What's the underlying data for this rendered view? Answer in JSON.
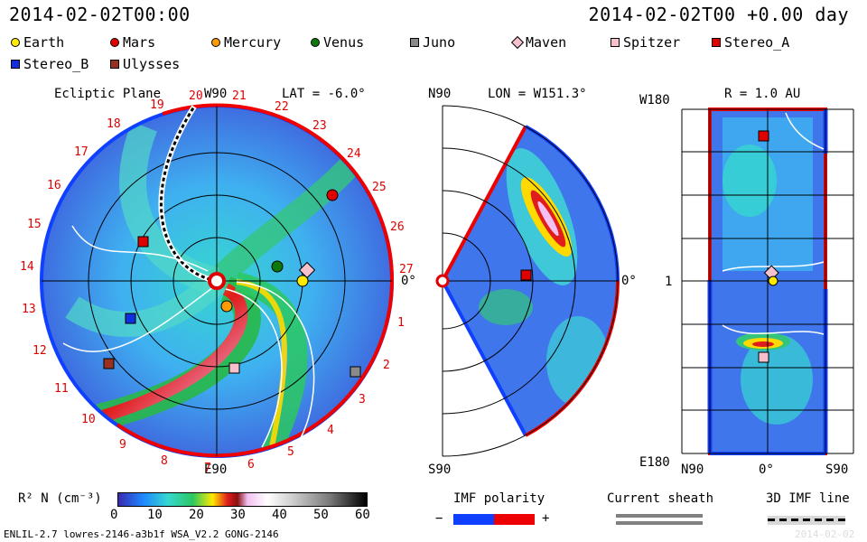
{
  "header": {
    "time": "2014-02-02T00:00",
    "time_right": "2014-02-02T00 +0.00 day"
  },
  "legend": [
    {
      "name": "Earth",
      "color": "#ffea00",
      "shape": "circle"
    },
    {
      "name": "Mars",
      "color": "#e00000",
      "shape": "circle"
    },
    {
      "name": "Mercury",
      "color": "#ff9a00",
      "shape": "circle"
    },
    {
      "name": "Venus",
      "color": "#0b7a0b",
      "shape": "circle"
    },
    {
      "name": "Juno",
      "color": "#8a8a8a",
      "shape": "square"
    },
    {
      "name": "Maven",
      "color": "#f6c0cc",
      "shape": "diamond"
    },
    {
      "name": "Spitzer",
      "color": "#f6c0cc",
      "shape": "square"
    },
    {
      "name": "Stereo_A",
      "color": "#e00000",
      "shape": "square"
    },
    {
      "name": "Stereo_B",
      "color": "#1030e0",
      "shape": "square"
    },
    {
      "name": "Ulysses",
      "color": "#9a3020",
      "shape": "square"
    }
  ],
  "panel1": {
    "title": "Ecliptic Plane",
    "top": "W90",
    "lat": "LAT = -6.0°",
    "bottom": "E90",
    "right": "0°",
    "hours": [
      "19",
      "20",
      "21",
      "22",
      "23",
      "24",
      "25",
      "26",
      "27",
      "1",
      "2",
      "3",
      "4",
      "5",
      "6",
      "7",
      "8",
      "9",
      "10",
      "11",
      "12",
      "13",
      "14",
      "15",
      "16",
      "17",
      "18"
    ]
  },
  "panel2": {
    "top": "N90",
    "lon": "LON = W151.3°",
    "bottom": "S90",
    "right": "0°"
  },
  "panel3": {
    "r": "R = 1.0 AU",
    "top": "W180",
    "bottom": "E180",
    "mid": "1",
    "x_left": "N90",
    "x_mid": "0°",
    "x_right": "S90"
  },
  "colorbar": {
    "label": "R² N (cm⁻³)",
    "ticks": [
      "0",
      "10",
      "20",
      "30",
      "40",
      "50",
      "60"
    ]
  },
  "imf": {
    "label": "IMF polarity",
    "minus": "−",
    "plus": "+"
  },
  "sheath": {
    "label": "Current sheath"
  },
  "imf3d": {
    "label": "3D IMF line"
  },
  "footer": {
    "text": "ENLIL-2.7 lowres-2146-a3b1f WSA_V2.2 GONG-2146",
    "faded": "2014-02-02"
  }
}
